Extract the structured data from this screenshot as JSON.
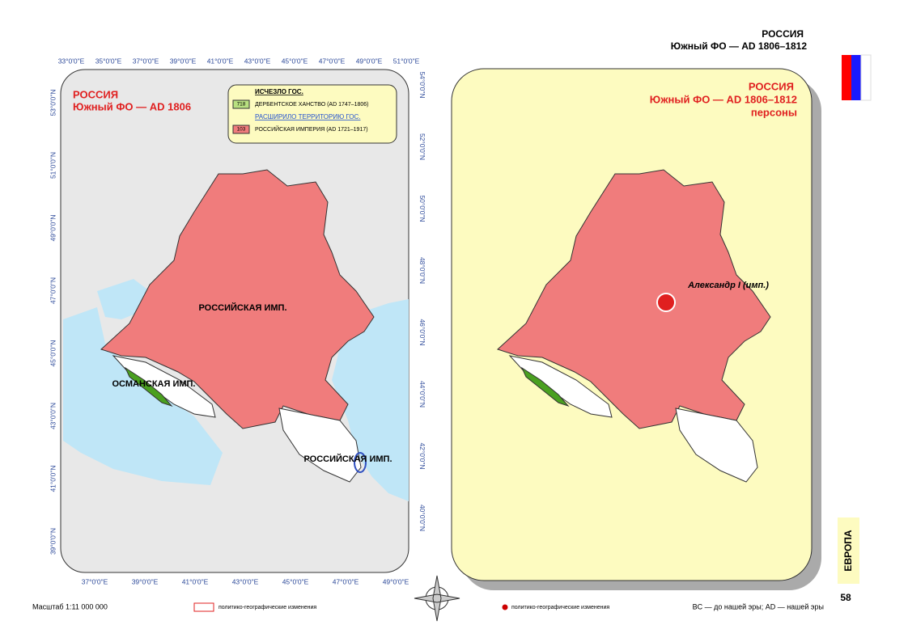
{
  "header": {
    "title": "РОССИЯ",
    "subtitle": "Южный ФО — AD 1806–1812"
  },
  "left_map": {
    "title": "РОССИЯ",
    "subtitle": "Южный ФО — AD 1806",
    "legend": {
      "vanished_heading": "ИСЧЕЗЛО ГОС.",
      "vanished_code": "718",
      "vanished_name": "ДЕРБЕНТСКОЕ ХАНСТВО (AD 1747–1806)",
      "expanded_heading": "РАСШИРИЛО ТЕРРИТОРИЮ ГОС.",
      "expanded_code": "103",
      "expanded_name": "РОССИЙСКАЯ ИМПЕРИЯ (AD 1721–1917)"
    },
    "labels": [
      "РОССИЙСКАЯ ИМП.",
      "ОСМАНСКАЯ ИМП.",
      "РОССИЙСКАЯ ИМП."
    ],
    "top_ticks": [
      "33°0'0\"E",
      "35°0'0\"E",
      "37°0'0\"E",
      "39°0'0\"E",
      "41°0'0\"E",
      "43°0'0\"E",
      "45°0'0\"E",
      "47°0'0\"E",
      "49°0'0\"E",
      "51°0'0\"E"
    ],
    "bottom_ticks": [
      "37°0'0\"E",
      "39°0'0\"E",
      "41°0'0\"E",
      "43°0'0\"E",
      "45°0'0\"E",
      "47°0'0\"E",
      "49°0'0\"E"
    ],
    "left_ticks": [
      "53°0'0\"N",
      "51°0'0\"N",
      "49°0'0\"N",
      "47°0'0\"N",
      "45°0'0\"N",
      "43°0'0\"N",
      "41°0'0\"N",
      "39°0'0\"N"
    ],
    "right_ticks": [
      "54°0'0\"N",
      "52°0'0\"N",
      "50°0'0\"N",
      "48°0'0\"N",
      "46°0'0\"N",
      "44°0'0\"N",
      "42°0'0\"N",
      "40°0'0\"N"
    ]
  },
  "right_map": {
    "title": "РОССИЯ",
    "subtitle": "Южный ФО — AD 1806–1812",
    "category": "персоны",
    "person": "Александр I (имп.)"
  },
  "footer": {
    "scale": "Масштаб 1:11 000 000",
    "legend_left": "политико-географические изменения",
    "legend_right": "политико-географические изменения",
    "era_note": "BC — до нашей эры; AD — нашей эры",
    "section": "ЕВРОПА",
    "page": "58"
  }
}
